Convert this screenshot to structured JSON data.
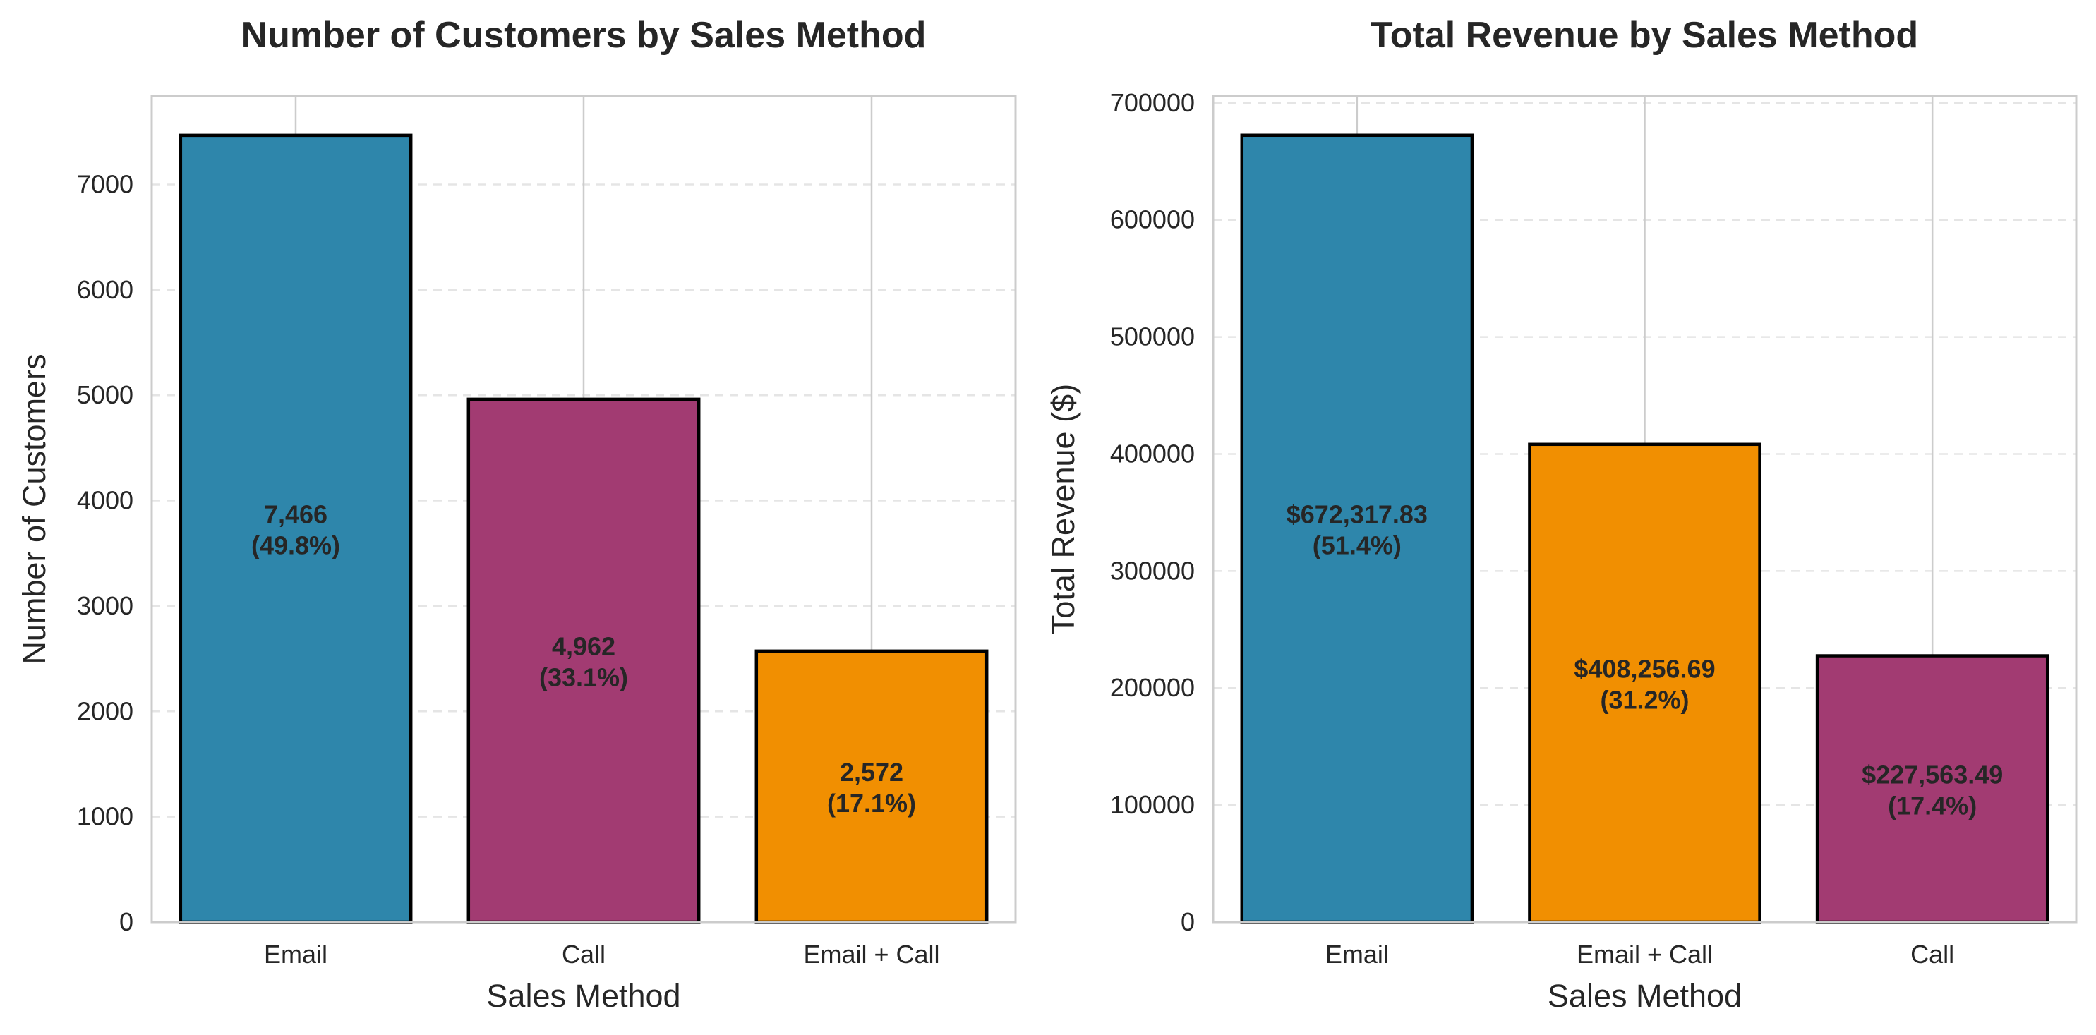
{
  "chart_data": [
    {
      "type": "bar",
      "title": "Number of Customers by Sales Method",
      "xlabel": "Sales Method",
      "ylabel": "Number of Customers",
      "categories": [
        "Email",
        "Call",
        "Email + Call"
      ],
      "values": [
        7466,
        4962,
        2572
      ],
      "value_labels": [
        "7,466",
        "4,962",
        "2,572"
      ],
      "percent_labels": [
        "(49.8%)",
        "(33.1%)",
        "(17.1%)"
      ],
      "colors": [
        "#2e86ab",
        "#a23b72",
        "#f18f01"
      ],
      "ylim": [
        0,
        7840
      ],
      "yticks": [
        0,
        1000,
        2000,
        3000,
        4000,
        5000,
        6000,
        7000
      ],
      "ytick_labels": [
        "0",
        "1000",
        "2000",
        "3000",
        "4000",
        "5000",
        "6000",
        "7000"
      ],
      "grid": true,
      "legend": "none"
    },
    {
      "type": "bar",
      "title": "Total Revenue by Sales Method",
      "xlabel": "Sales Method",
      "ylabel": "Total Revenue ($)",
      "categories": [
        "Email",
        "Email + Call",
        "Call"
      ],
      "values": [
        672317.83,
        408256.69,
        227563.49
      ],
      "value_labels": [
        "$672,317.83",
        "$408,256.69",
        "$227,563.49"
      ],
      "percent_labels": [
        "(51.4%)",
        "(31.2%)",
        "(17.4%)"
      ],
      "colors": [
        "#2e86ab",
        "#f18f01",
        "#a23b72"
      ],
      "ylim": [
        0,
        705934
      ],
      "yticks": [
        0,
        100000,
        200000,
        300000,
        400000,
        500000,
        600000,
        700000
      ],
      "ytick_labels": [
        "0",
        "100000",
        "200000",
        "300000",
        "400000",
        "500000",
        "600000",
        "700000"
      ],
      "grid": true,
      "legend": "none"
    }
  ]
}
